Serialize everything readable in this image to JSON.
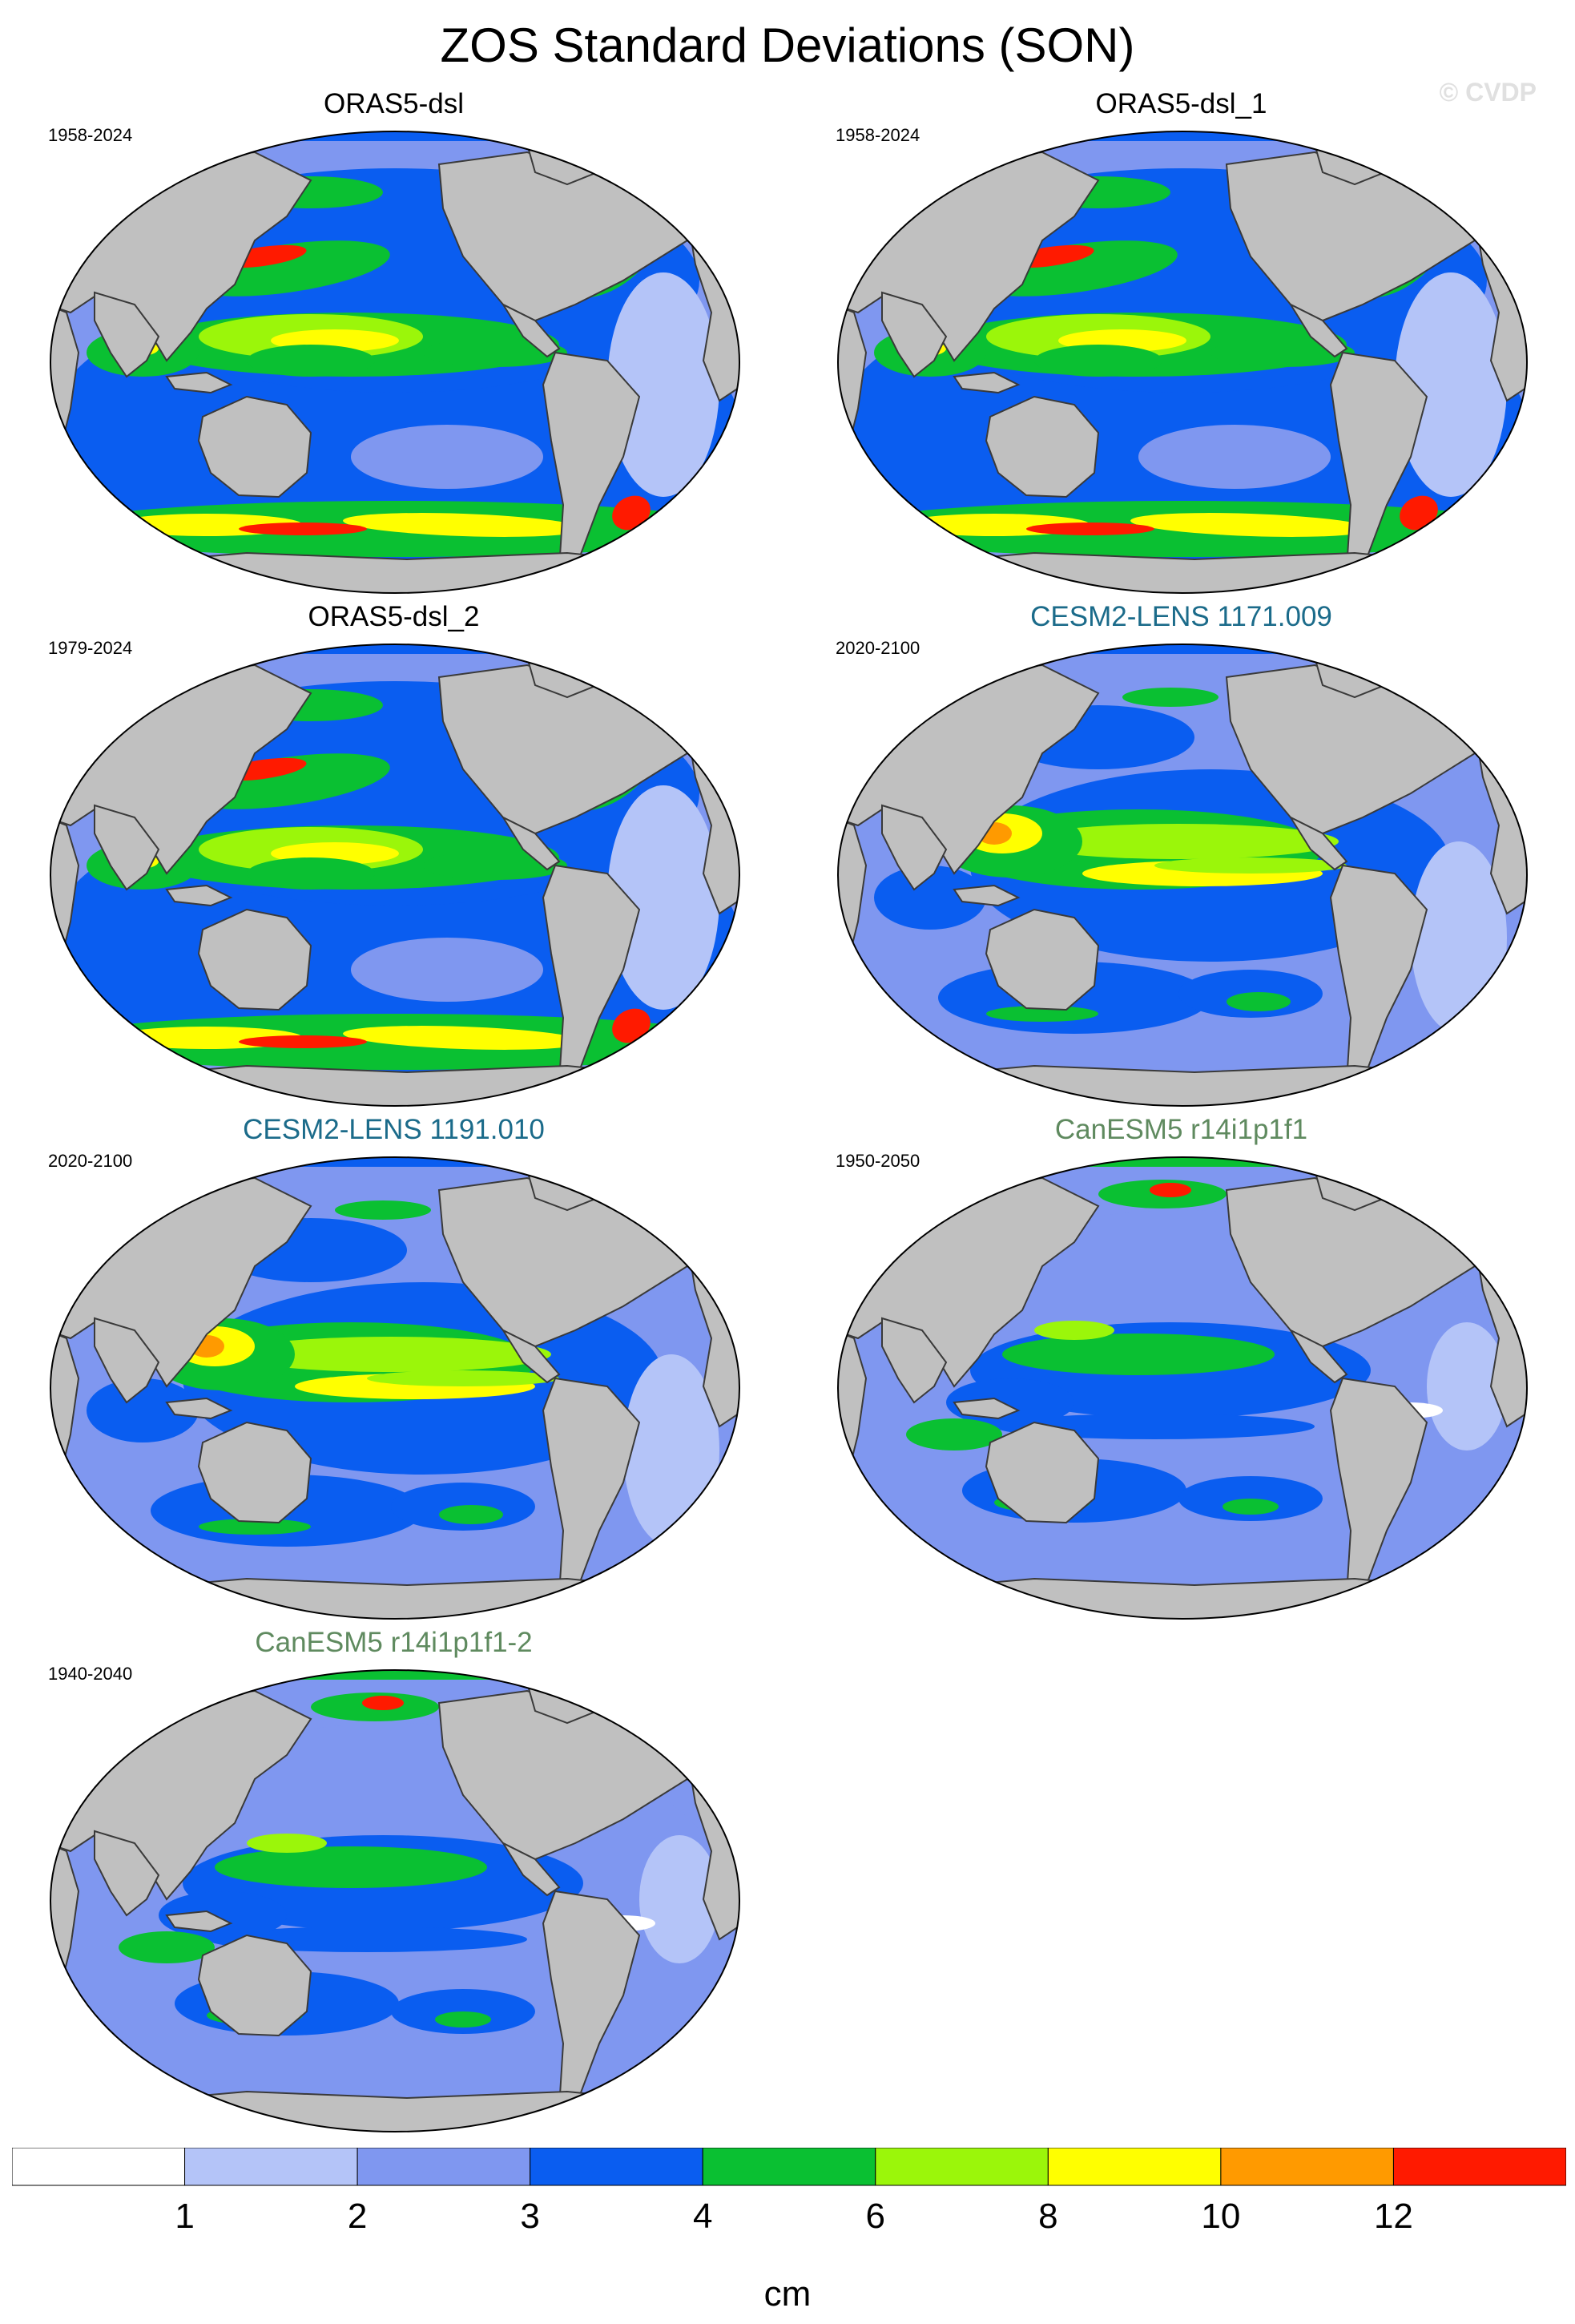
{
  "figure": {
    "title": "ZOS Standard Deviations (SON)",
    "watermark": "© CVDP"
  },
  "colors": {
    "land": "#c0c0c0",
    "coast": "#3a3a3a",
    "outline": "#000000"
  },
  "panels": [
    {
      "title": "ORAS5-dsl",
      "period": "1958-2024",
      "title_color": "#000000",
      "style": "obs"
    },
    {
      "title": "ORAS5-dsl_1",
      "period": "1958-2024",
      "title_color": "#000000",
      "style": "obs"
    },
    {
      "title": "ORAS5-dsl_2",
      "period": "1979-2024",
      "title_color": "#000000",
      "style": "obs"
    },
    {
      "title": "CESM2-LENS 1171.009",
      "period": "2020-2100",
      "title_color": "#1b6b8a",
      "style": "cesm"
    },
    {
      "title": "CESM2-LENS 1191.010",
      "period": "2020-2100",
      "title_color": "#1b6b8a",
      "style": "cesm"
    },
    {
      "title": "CanESM5 r14i1p1f1",
      "period": "1950-2050",
      "title_color": "#5f8a5f",
      "style": "canesm"
    },
    {
      "title": "CanESM5 r14i1p1f1-2",
      "period": "1940-2040",
      "title_color": "#5f8a5f",
      "style": "canesm"
    }
  ],
  "colorbar": {
    "unit": "cm",
    "colors": [
      "#ffffff",
      "#b4c4f8",
      "#7f97f0",
      "#0a5df0",
      "#0ac032",
      "#9bf60a",
      "#ffff00",
      "#ff9a00",
      "#ff1a00"
    ],
    "labels": [
      "1",
      "2",
      "3",
      "4",
      "6",
      "8",
      "10",
      "12"
    ]
  }
}
